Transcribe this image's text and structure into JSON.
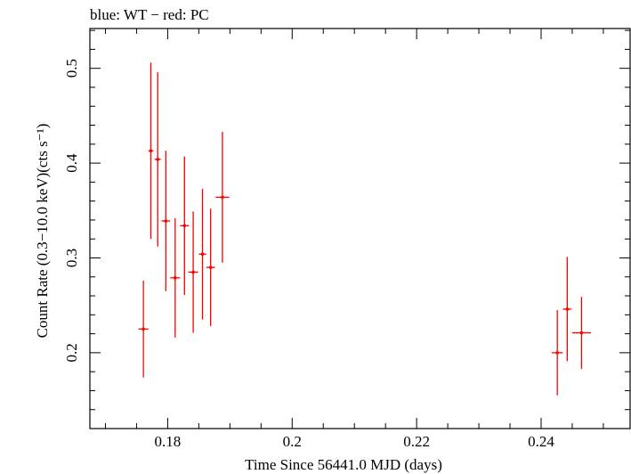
{
  "chart_data": {
    "type": "scatter",
    "title": "blue: WT − red: PC",
    "xlabel": "Time Since 56441.0 MJD (days)",
    "ylabel": "Count Rate (0.3−10.0 keV)(cts s⁻¹)",
    "xlim": [
      0.1675,
      0.2543
    ],
    "ylim": [
      0.12,
      0.542
    ],
    "x_ticks": [
      0.18,
      0.2,
      0.22,
      0.24
    ],
    "x_tick_labels": [
      "0.18",
      "0.2",
      "0.22",
      "0.24"
    ],
    "y_ticks": [
      0.2,
      0.3,
      0.4,
      0.5
    ],
    "y_tick_labels": [
      "0.2",
      "0.3",
      "0.4",
      "0.5"
    ],
    "grid": false,
    "series": [
      {
        "name": "PC",
        "color": "#ff0000",
        "points": [
          {
            "x": 0.1761,
            "xerr": 0.0008,
            "y": 0.225,
            "yerr": 0.051
          },
          {
            "x": 0.1773,
            "xerr": 0.0004,
            "y": 0.413,
            "yerr": 0.093
          },
          {
            "x": 0.1784,
            "xerr": 0.0005,
            "y": 0.404,
            "yerr": 0.092
          },
          {
            "x": 0.1797,
            "xerr": 0.0007,
            "y": 0.339,
            "yerr": 0.074
          },
          {
            "x": 0.1812,
            "xerr": 0.0008,
            "y": 0.279,
            "yerr": 0.063
          },
          {
            "x": 0.1827,
            "xerr": 0.0007,
            "y": 0.334,
            "yerr": 0.073
          },
          {
            "x": 0.1841,
            "xerr": 0.0008,
            "y": 0.285,
            "yerr": 0.064
          },
          {
            "x": 0.1856,
            "xerr": 0.0006,
            "y": 0.304,
            "yerr": 0.069
          },
          {
            "x": 0.1869,
            "xerr": 0.0007,
            "y": 0.29,
            "yerr": 0.062
          },
          {
            "x": 0.1888,
            "xerr": 0.0011,
            "y": 0.364,
            "yerr": 0.069
          },
          {
            "x": 0.2426,
            "xerr": 0.0009,
            "y": 0.2,
            "yerr": 0.045
          },
          {
            "x": 0.2442,
            "xerr": 0.0007,
            "y": 0.246,
            "yerr": 0.055
          },
          {
            "x": 0.2465,
            "xerr": 0.0015,
            "y": 0.221,
            "yerr": 0.038
          }
        ]
      }
    ]
  }
}
